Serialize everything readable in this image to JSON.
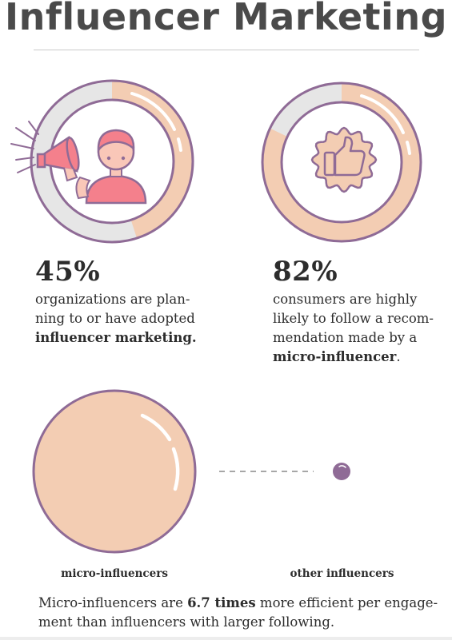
{
  "title": "Influencer Marketing",
  "stats": [
    {
      "value": "45%",
      "text_pre": "organizations are plan-",
      "text_line2": "ning to or have adopted",
      "text_bold": "influencer marketing.",
      "ring_fraction": 0.45
    },
    {
      "value": "82%",
      "text_line1": "consumers are highly",
      "text_line2": "likely to follow a recom-",
      "text_line3": "mendation made by a",
      "text_bold": "micro-influencer",
      "text_after_bold": ".",
      "ring_fraction": 0.82
    }
  ],
  "comparison": {
    "left_label": "micro-influencers",
    "right_label": "other influencers",
    "footer_pre": "Micro-influencers are ",
    "footer_bold": "6.7 times",
    "footer_post": " more efficient per engage-",
    "footer_line2": "ment than influencers with larger following."
  },
  "colors": {
    "peach": "#f3cdb3",
    "purple": "#8f6b96",
    "grey_ring": "#e6e6e6",
    "pink": "#f4808c",
    "text": "#2c2c2c"
  },
  "icons": {
    "stat1": "megaphone-person-icon",
    "stat2": "thumbs-up-badge-icon"
  }
}
